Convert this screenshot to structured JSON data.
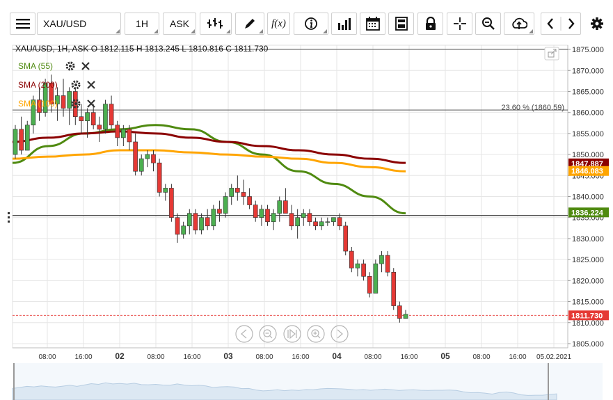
{
  "toolbar": {
    "symbol": "XAU/USD",
    "timeframe": "1H",
    "price_side": "ASK",
    "fx_label": "f(x)",
    "buttons": [
      "menu-icon",
      "chart-type-icon",
      "draw-icon",
      "indicator-fx-icon",
      "info-icon",
      "volume-bars-icon",
      "calendar-icon",
      "save-layout-icon",
      "lock-icon",
      "crosshair-icon",
      "zoom-icon",
      "upload-icon",
      "prev-icon",
      "next-icon",
      "settings-icon"
    ]
  },
  "chart": {
    "ohlc_line": "XAU/USD, 1H, ASK   O  1812.115 H  1813.245 L  1810.816 C  1811.730",
    "indicators": [
      {
        "label": "SMA (55)",
        "color": "#4f8a10"
      },
      {
        "label": "SMA (200)",
        "color": "#8b0000"
      },
      {
        "label": "SMA (100)",
        "color": "#ffa500"
      }
    ],
    "fib_label": "23.60 % (1860.59)",
    "price_tags": [
      {
        "value": "1847.887",
        "bg": "#8b0000"
      },
      {
        "value": "1846.083",
        "bg": "#ffa500"
      },
      {
        "value": "1836.224",
        "bg": "#4f8a10"
      },
      {
        "value": "1811.730",
        "bg": "#e53935"
      }
    ],
    "nav_icons": [
      "scroll-left-icon",
      "zoom-out-icon",
      "reset-zoom-icon",
      "zoom-in-icon",
      "scroll-right-icon"
    ],
    "colors": {
      "up": "#4caf50",
      "down": "#e53935",
      "grid": "#e6e6e6",
      "axis_text": "#333333"
    }
  },
  "chart_data": {
    "type": "candlestick",
    "title": "XAU/USD, 1H, ASK",
    "ylim": [
      1804,
      1876
    ],
    "y_ticks": [
      "1805.000",
      "1810.000",
      "1815.000",
      "1820.000",
      "1825.000",
      "1830.000",
      "1835.000",
      "1840.000",
      "1845.000",
      "1850.000",
      "1855.000",
      "1860.000",
      "1865.000",
      "1870.000",
      "1875.000"
    ],
    "x_ticks": [
      {
        "label": "08:00",
        "bold": false
      },
      {
        "label": "16:00",
        "bold": false
      },
      {
        "label": "02",
        "bold": true
      },
      {
        "label": "08:00",
        "bold": false
      },
      {
        "label": "16:00",
        "bold": false
      },
      {
        "label": "03",
        "bold": true
      },
      {
        "label": "08:00",
        "bold": false
      },
      {
        "label": "16:00",
        "bold": false
      },
      {
        "label": "04",
        "bold": true
      },
      {
        "label": "08:00",
        "bold": false
      },
      {
        "label": "16:00",
        "bold": false
      },
      {
        "label": "05",
        "bold": true
      },
      {
        "label": "08:00",
        "bold": false
      },
      {
        "label": "16:00",
        "bold": false
      },
      {
        "label": "05.02.2021",
        "bold": false
      }
    ],
    "horizontal_lines": [
      {
        "name": "top-level",
        "value": 1875.0
      },
      {
        "name": "fibonacci-23.6",
        "value": 1860.59
      },
      {
        "name": "support-line",
        "value": 1835.5
      },
      {
        "name": "last-price",
        "value": 1811.73
      }
    ],
    "candles": [
      [
        1850,
        1857,
        1849,
        1856
      ],
      [
        1856,
        1859,
        1850,
        1851
      ],
      [
        1851,
        1858,
        1851,
        1857
      ],
      [
        1857,
        1864,
        1855,
        1863
      ],
      [
        1863,
        1866,
        1858,
        1860
      ],
      [
        1860,
        1868,
        1859,
        1867
      ],
      [
        1867,
        1869,
        1860,
        1862
      ],
      [
        1862,
        1866,
        1858,
        1864
      ],
      [
        1864,
        1868,
        1859,
        1861
      ],
      [
        1861,
        1866,
        1857,
        1865
      ],
      [
        1865,
        1866,
        1857,
        1859
      ],
      [
        1859,
        1862,
        1855,
        1858
      ],
      [
        1858,
        1861,
        1854,
        1860
      ],
      [
        1860,
        1862,
        1856,
        1857
      ],
      [
        1857,
        1859,
        1853,
        1856
      ],
      [
        1856,
        1863,
        1855,
        1862
      ],
      [
        1862,
        1864,
        1856,
        1857
      ],
      [
        1857,
        1858,
        1852,
        1854
      ],
      [
        1854,
        1857,
        1852,
        1856
      ],
      [
        1856,
        1857,
        1851,
        1853
      ],
      [
        1853,
        1855,
        1845,
        1846
      ],
      [
        1846,
        1850,
        1845,
        1849
      ],
      [
        1849,
        1851,
        1847,
        1850
      ],
      [
        1850,
        1851,
        1846,
        1848
      ],
      [
        1848,
        1849,
        1840,
        1841
      ],
      [
        1841,
        1843,
        1839,
        1842
      ],
      [
        1842,
        1843,
        1834,
        1835
      ],
      [
        1835,
        1836,
        1829,
        1831
      ],
      [
        1831,
        1834,
        1830,
        1833
      ],
      [
        1833,
        1837,
        1831,
        1836
      ],
      [
        1836,
        1837,
        1831,
        1832
      ],
      [
        1832,
        1836,
        1831,
        1835
      ],
      [
        1835,
        1837,
        1832,
        1833
      ],
      [
        1833,
        1838,
        1832,
        1837
      ],
      [
        1837,
        1839,
        1834,
        1836
      ],
      [
        1836,
        1841,
        1835,
        1840
      ],
      [
        1840,
        1843,
        1838,
        1842
      ],
      [
        1842,
        1845,
        1839,
        1841
      ],
      [
        1841,
        1844,
        1838,
        1840
      ],
      [
        1840,
        1842,
        1837,
        1838
      ],
      [
        1838,
        1839,
        1834,
        1835
      ],
      [
        1835,
        1838,
        1833,
        1837
      ],
      [
        1837,
        1838,
        1833,
        1834
      ],
      [
        1834,
        1837,
        1832,
        1836
      ],
      [
        1836,
        1840,
        1834,
        1839
      ],
      [
        1839,
        1842,
        1836,
        1836
      ],
      [
        1836,
        1838,
        1832,
        1833
      ],
      [
        1833,
        1837,
        1830,
        1835
      ],
      [
        1835,
        1837,
        1833,
        1836
      ],
      [
        1836,
        1837,
        1833,
        1834
      ],
      [
        1834,
        1835,
        1832,
        1833
      ],
      [
        1833,
        1835,
        1832,
        1834
      ],
      [
        1834,
        1835,
        1833,
        1834
      ],
      [
        1834,
        1835,
        1833,
        1835
      ],
      [
        1835,
        1836,
        1832,
        1833
      ],
      [
        1833,
        1834,
        1826,
        1827
      ],
      [
        1827,
        1828,
        1822,
        1823
      ],
      [
        1823,
        1825,
        1821,
        1824
      ],
      [
        1824,
        1825,
        1820,
        1821
      ],
      [
        1821,
        1822,
        1816,
        1817
      ],
      [
        1817,
        1825,
        1817,
        1824
      ],
      [
        1824,
        1827,
        1822,
        1826
      ],
      [
        1826,
        1827,
        1821,
        1822
      ],
      [
        1822,
        1823,
        1813,
        1814
      ],
      [
        1814,
        1815,
        1810,
        1811
      ],
      [
        1811,
        1813,
        1811,
        1812
      ]
    ],
    "series": [
      {
        "name": "SMA (55)",
        "color": "#4f8a10",
        "values": [
          1848,
          1852,
          1855,
          1856,
          1857,
          1856,
          1853,
          1850,
          1846,
          1843,
          1840,
          1836
        ]
      },
      {
        "name": "SMA (200)",
        "color": "#8b0000",
        "values": [
          1853,
          1854,
          1855,
          1855.5,
          1855,
          1854,
          1853,
          1852,
          1851,
          1850,
          1849,
          1848
        ]
      },
      {
        "name": "SMA (100)",
        "color": "#ffa500",
        "values": [
          1849,
          1849.5,
          1850,
          1851,
          1851,
          1850.5,
          1850,
          1849.5,
          1849,
          1848,
          1847,
          1846
        ]
      }
    ]
  }
}
